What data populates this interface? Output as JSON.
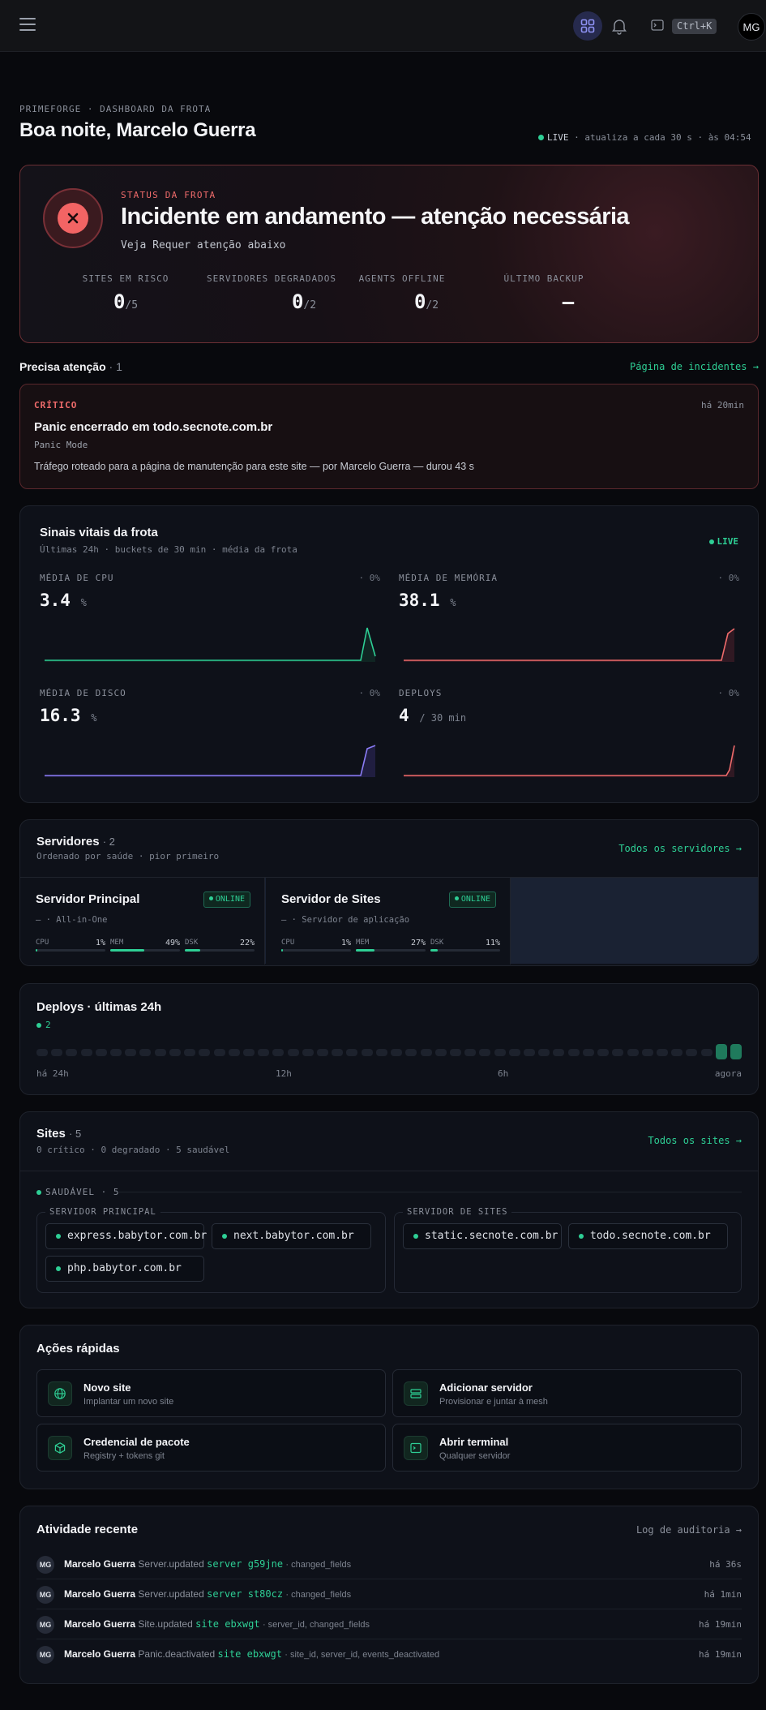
{
  "topbar": {
    "shortcut": "Ctrl+K",
    "avatar": "MG"
  },
  "header": {
    "crumb": "PRIMEFORGE · DASHBOARD DA FROTA",
    "greeting": "Boa noite, Marcelo Guerra",
    "live": "LIVE",
    "live_info": "· atualiza a cada 30 s · às 04:54"
  },
  "status": {
    "label": "STATUS DA FROTA",
    "title": "Incidente em andamento — atenção necessária",
    "sub": "Veja Requer atenção abaixo",
    "metrics": [
      {
        "label": "SITES EM RISCO",
        "value": "0",
        "total": "/5"
      },
      {
        "label": "SERVIDORES DEGRADADOS",
        "value": "0",
        "total": "/2"
      },
      {
        "label": "AGENTS OFFLINE",
        "value": "0",
        "total": "/2"
      },
      {
        "label": "ÚLTIMO BACKUP",
        "value": "—",
        "total": ""
      }
    ]
  },
  "attention": {
    "title": "Precisa atenção",
    "count": "· 1",
    "link": "Página de incidentes →",
    "item": {
      "severity": "CRÍTICO",
      "time": "há 20min",
      "title": "Panic encerrado em todo.secnote.com.br",
      "mode": "Panic Mode",
      "desc": "Tráfego roteado para a página de manutenção para este site — por Marcelo Guerra — durou 43 s"
    }
  },
  "vitals": {
    "title": "Sinais vitais da frota",
    "sub": "Últimas 24h · buckets de 30 min · média da frota",
    "live": "LIVE",
    "metrics": [
      {
        "label": "MÉDIA DE CPU",
        "pct": "· 0%",
        "value": "3.4",
        "unit": "%",
        "color": "#2ecf95"
      },
      {
        "label": "MÉDIA DE MEMÓRIA",
        "pct": "· 0%",
        "value": "38.1",
        "unit": "%",
        "color": "#ef6b6b"
      },
      {
        "label": "MÉDIA DE DISCO",
        "pct": "· 0%",
        "value": "16.3",
        "unit": "%",
        "color": "#8b7cf6"
      },
      {
        "label": "DEPLOYS",
        "pct": "· 0%",
        "value": "4",
        "unit": "/ 30 min",
        "color": "#ef6b6b"
      }
    ]
  },
  "servers": {
    "title": "Servidores",
    "count": "· 2",
    "sub": "Ordenado por saúde · pior primeiro",
    "link": "Todos os servidores →",
    "items": [
      {
        "name": "Servidor Principal",
        "status": "ONLINE",
        "role": "— · All-in-One",
        "cpu": "1%",
        "mem": "49%",
        "dsk": "22%",
        "cpu_f": 0.01,
        "mem_f": 0.49,
        "dsk_f": 0.22
      },
      {
        "name": "Servidor de Sites",
        "status": "ONLINE",
        "role": "— · Servidor de aplicação",
        "cpu": "1%",
        "mem": "27%",
        "dsk": "11%",
        "cpu_f": 0.01,
        "mem_f": 0.27,
        "dsk_f": 0.11
      }
    ],
    "labels": {
      "cpu": "CPU",
      "mem": "MEM",
      "dsk": "DSK"
    }
  },
  "deploys": {
    "title": "Deploys · últimas 24h",
    "count": "2",
    "ticks": [
      "há 24h",
      "12h",
      "6h",
      "agora"
    ]
  },
  "sites": {
    "title": "Sites",
    "count": "· 5",
    "sub": "0 crítico · 0 degradado · 5 saudável",
    "link": "Todos os sites →",
    "group": "SAUDÁVEL · 5",
    "boxes": [
      {
        "title": "SERVIDOR PRINCIPAL",
        "sites": [
          "express.babytor.com.br",
          "next.babytor.com.br",
          "php.babytor.com.br"
        ]
      },
      {
        "title": "SERVIDOR DE SITES",
        "sites": [
          "static.secnote.com.br",
          "todo.secnote.com.br"
        ]
      }
    ]
  },
  "quick": {
    "title": "Ações rápidas",
    "items": [
      {
        "title": "Novo site",
        "sub": "Implantar um novo site",
        "icon": "globe-icon"
      },
      {
        "title": "Adicionar servidor",
        "sub": "Provisionar e juntar à mesh",
        "icon": "server-icon"
      },
      {
        "title": "Credencial de pacote",
        "sub": "Registry + tokens git",
        "icon": "package-icon"
      },
      {
        "title": "Abrir terminal",
        "sub": "Qualquer servidor",
        "icon": "terminal-icon"
      }
    ]
  },
  "activity": {
    "title": "Atividade recente",
    "link": "Log de auditoria →",
    "rows": [
      {
        "avatar": "MG",
        "who": "Marcelo Guerra",
        "act": "Server.updated",
        "obj": "server g59jne",
        "fields": "· changed_fields",
        "time": "há 36s"
      },
      {
        "avatar": "MG",
        "who": "Marcelo Guerra",
        "act": "Server.updated",
        "obj": "server st80cz",
        "fields": "· changed_fields",
        "time": "há 1min"
      },
      {
        "avatar": "MG",
        "who": "Marcelo Guerra",
        "act": "Site.updated",
        "obj": "site ebxwgt",
        "fields": "· server_id, changed_fields",
        "time": "há 19min"
      },
      {
        "avatar": "MG",
        "who": "Marcelo Guerra",
        "act": "Panic.deactivated",
        "obj": "site ebxwgt",
        "fields": "· site_id, server_id, events_deactivated",
        "time": "há 19min"
      }
    ]
  }
}
